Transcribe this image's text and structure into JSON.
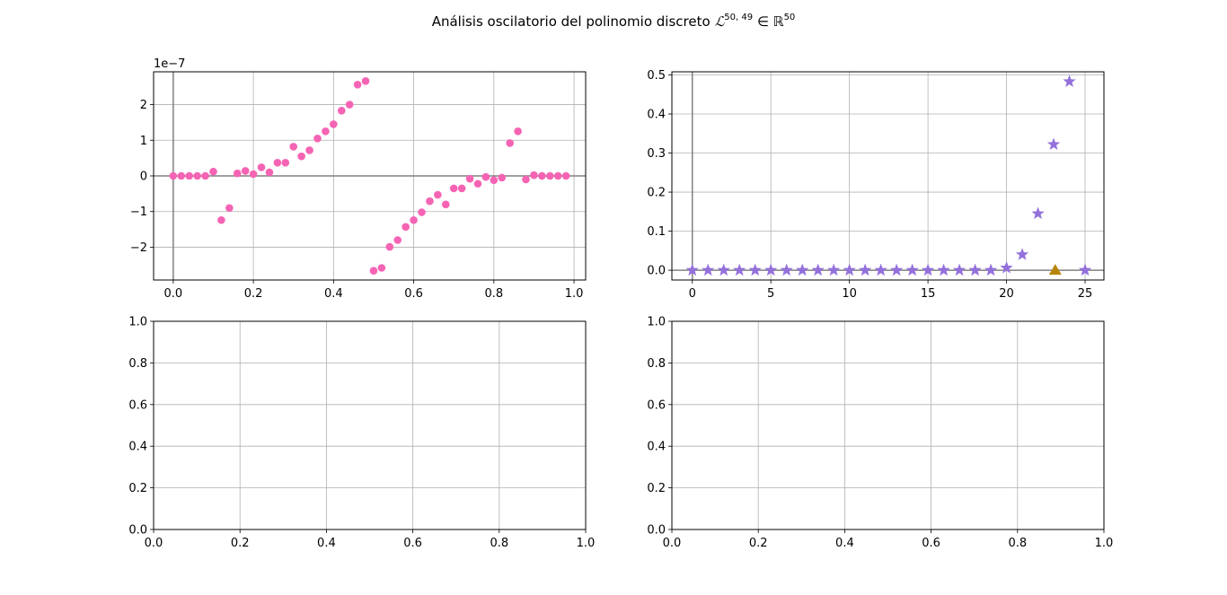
{
  "figure": {
    "title_text": "Análisis oscilatorio del polinomio discreto ",
    "title_math_L": "ℒ",
    "title_math_L_sup": "50, 49",
    "title_math_in": " ∈ ",
    "title_math_R": "ℝ",
    "title_math_R_sup": "50"
  },
  "chart_data": [
    {
      "type": "scatter",
      "position": "top-left",
      "offset_label": "1e−7",
      "xlim": [
        -0.049,
        1.029
      ],
      "ylim": [
        -2.92,
        2.92
      ],
      "xticks": [
        0.0,
        0.2,
        0.4,
        0.6,
        0.8,
        1.0
      ],
      "xtick_labels": [
        "0.0",
        "0.2",
        "0.4",
        "0.6",
        "0.8",
        "1.0"
      ],
      "yticks": [
        -2,
        -1,
        0,
        1,
        2
      ],
      "ytick_labels": [
        "−2",
        "−1",
        "0",
        "1",
        "2"
      ],
      "grid": true,
      "axhline": 0,
      "axvline": 0,
      "series": [
        {
          "marker": "circle",
          "color": "#f564b4",
          "x": [
            0.0,
            0.02,
            0.04,
            0.06,
            0.08,
            0.1,
            0.12,
            0.14,
            0.16,
            0.18,
            0.2,
            0.22,
            0.24,
            0.26,
            0.28,
            0.3,
            0.32,
            0.34,
            0.36,
            0.38,
            0.4,
            0.42,
            0.44,
            0.46,
            0.48,
            0.5,
            0.52,
            0.54,
            0.56,
            0.58,
            0.6,
            0.62,
            0.64,
            0.66,
            0.68,
            0.7,
            0.72,
            0.74,
            0.76,
            0.78,
            0.8,
            0.82,
            0.84,
            0.86,
            0.88,
            0.9,
            0.92,
            0.94,
            0.96,
            0.98
          ],
          "y": [
            0.0,
            0.0,
            0.0,
            0.0,
            0.0,
            0.12,
            -1.24,
            -0.9,
            0.07,
            0.14,
            0.05,
            0.24,
            0.1,
            0.37,
            0.37,
            0.82,
            0.55,
            0.72,
            1.05,
            1.25,
            1.45,
            1.83,
            2.0,
            2.56,
            2.66,
            -2.66,
            -2.58,
            -1.99,
            -1.8,
            -1.43,
            -1.24,
            -1.02,
            -0.71,
            -0.53,
            -0.8,
            -0.35,
            -0.35,
            -0.08,
            -0.22,
            -0.03,
            -0.12,
            -0.05,
            0.92,
            1.25,
            -0.1,
            0.02,
            0.0,
            0.0,
            0.0,
            0.0
          ]
        }
      ]
    },
    {
      "type": "scatter",
      "position": "top-right",
      "xlim": [
        -1.3,
        26.2
      ],
      "ylim": [
        -0.025,
        0.508
      ],
      "xticks": [
        0,
        5,
        10,
        15,
        20,
        25
      ],
      "xtick_labels": [
        "0",
        "5",
        "10",
        "15",
        "20",
        "25"
      ],
      "yticks": [
        0.0,
        0.1,
        0.2,
        0.3,
        0.4,
        0.5
      ],
      "ytick_labels": [
        "0.0",
        "0.1",
        "0.2",
        "0.3",
        "0.4",
        "0.5"
      ],
      "grid": true,
      "axhline": 0,
      "axvline": 0,
      "series": [
        {
          "marker": "star",
          "color": "#9370db",
          "x": [
            0,
            1,
            2,
            3,
            4,
            5,
            6,
            7,
            8,
            9,
            10,
            11,
            12,
            13,
            14,
            15,
            16,
            17,
            18,
            19,
            20,
            21,
            22,
            23,
            24,
            25
          ],
          "y": [
            0,
            0,
            0,
            0,
            0,
            0,
            0,
            0,
            0,
            0,
            0,
            0,
            0,
            0,
            0,
            0,
            0,
            0,
            0,
            0,
            0.006,
            0.04,
            0.145,
            0.322,
            0.483,
            0.0
          ]
        },
        {
          "marker": "triangle",
          "color": "#b8860b",
          "x": [
            23.1
          ],
          "y": [
            0.0
          ]
        }
      ]
    },
    {
      "type": "scatter",
      "position": "bottom-left",
      "xlim": [
        0,
        1
      ],
      "ylim": [
        0,
        1
      ],
      "xticks": [
        0.0,
        0.2,
        0.4,
        0.6,
        0.8,
        1.0
      ],
      "xtick_labels": [
        "0.0",
        "0.2",
        "0.4",
        "0.6",
        "0.8",
        "1.0"
      ],
      "yticks": [
        0.0,
        0.2,
        0.4,
        0.6,
        0.8,
        1.0
      ],
      "ytick_labels": [
        "0.0",
        "0.2",
        "0.4",
        "0.6",
        "0.8",
        "1.0"
      ],
      "grid": true,
      "series": []
    },
    {
      "type": "scatter",
      "position": "bottom-right",
      "xlim": [
        0,
        1
      ],
      "ylim": [
        0,
        1
      ],
      "xticks": [
        0.0,
        0.2,
        0.4,
        0.6,
        0.8,
        1.0
      ],
      "xtick_labels": [
        "0.0",
        "0.2",
        "0.4",
        "0.6",
        "0.8",
        "1.0"
      ],
      "yticks": [
        0.0,
        0.2,
        0.4,
        0.6,
        0.8,
        1.0
      ],
      "ytick_labels": [
        "0.0",
        "0.2",
        "0.4",
        "0.6",
        "0.8",
        "1.0"
      ],
      "grid": true,
      "series": []
    }
  ]
}
